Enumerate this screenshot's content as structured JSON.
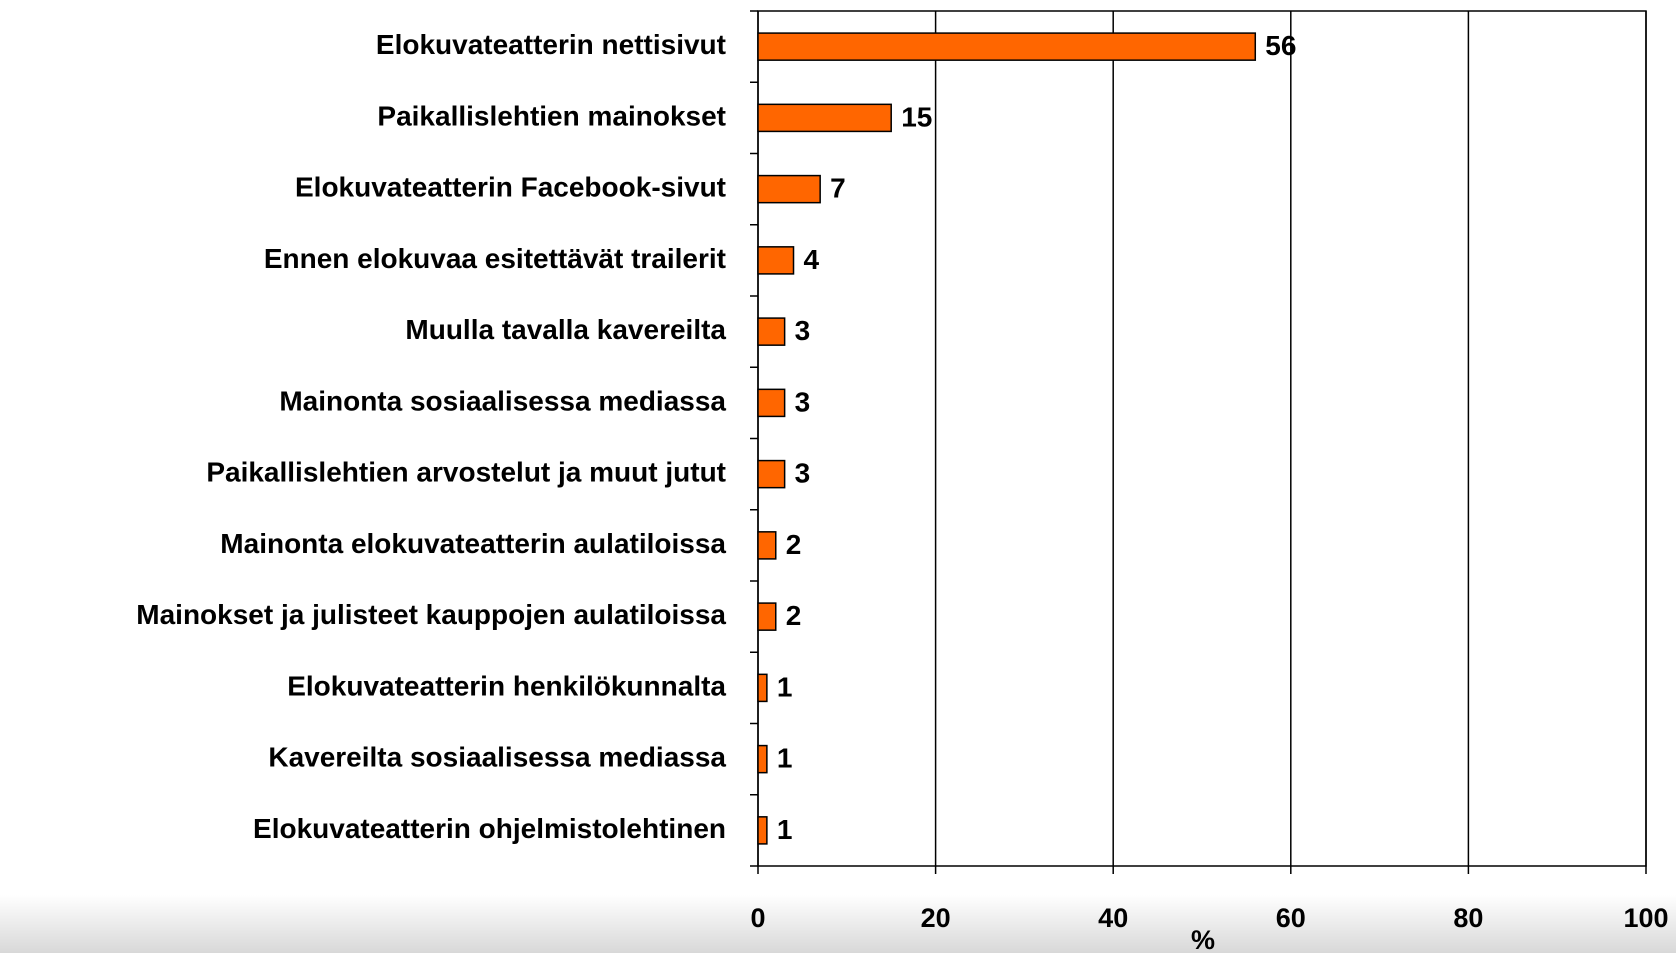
{
  "chart_data": {
    "type": "bar",
    "orientation": "horizontal",
    "categories": [
      "Elokuvateatterin nettisivut",
      "Paikallislehtien mainokset",
      "Elokuvateatterin Facebook-sivut",
      "Ennen elokuvaa esitettävät trailerit",
      "Muulla tavalla kavereilta",
      "Mainonta sosiaalisessa mediassa",
      "Paikallislehtien arvostelut ja muut jutut",
      "Mainonta elokuvateatterin aulatiloissa",
      "Mainokset ja julisteet kauppojen aulatiloissa",
      "Elokuvateatterin henkilökunnalta",
      "Kavereilta sosiaalisessa mediassa",
      "Elokuvateatterin ohjelmistolehtinen"
    ],
    "values": [
      56,
      15,
      7,
      4,
      3,
      3,
      3,
      2,
      2,
      1,
      1,
      1
    ],
    "color": "#ff6600",
    "x_label": "%",
    "xlim": [
      0,
      100
    ],
    "xticks": [
      0,
      20,
      40,
      60,
      80,
      100
    ],
    "grid": true
  }
}
